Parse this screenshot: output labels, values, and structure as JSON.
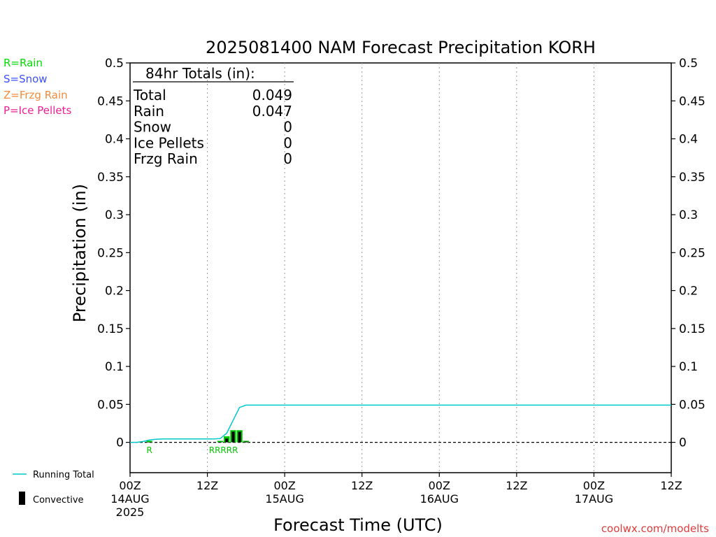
{
  "chart_data": {
    "type": "bar",
    "title": "2025081400 NAM Forecast Precipitation KORH",
    "xlabel": "Forecast Time (UTC)",
    "ylabel": "Precipitation (in)",
    "ylim": [
      -0.04,
      0.5
    ],
    "xlim_hours": [
      0,
      84
    ],
    "grid": "vertical dotted",
    "y_ticks": [
      "0",
      "0.05",
      "0.1",
      "0.15",
      "0.2",
      "0.25",
      "0.3",
      "0.35",
      "0.4",
      "0.45",
      "0.5"
    ],
    "x_ticks": [
      {
        "hour": 0,
        "label": "00Z",
        "sub": [
          "14AUG",
          "2025"
        ]
      },
      {
        "hour": 12,
        "label": "12Z",
        "sub": []
      },
      {
        "hour": 24,
        "label": "00Z",
        "sub": [
          "15AUG"
        ]
      },
      {
        "hour": 36,
        "label": "12Z",
        "sub": []
      },
      {
        "hour": 48,
        "label": "00Z",
        "sub": [
          "16AUG"
        ]
      },
      {
        "hour": 60,
        "label": "12Z",
        "sub": []
      },
      {
        "hour": 72,
        "label": "00Z",
        "sub": [
          "17AUG"
        ]
      },
      {
        "hour": 84,
        "label": "12Z",
        "sub": []
      }
    ],
    "series": [
      {
        "name": "Running Total",
        "type": "line",
        "color": "#00c8c8",
        "points": [
          [
            0,
            0
          ],
          [
            1,
            0
          ],
          [
            2,
            0.001
          ],
          [
            3,
            0.003
          ],
          [
            4,
            0.004
          ],
          [
            5,
            0.0045
          ],
          [
            8,
            0.0045
          ],
          [
            12,
            0.0045
          ],
          [
            13,
            0.0045
          ],
          [
            14,
            0.005
          ],
          [
            15,
            0.012
          ],
          [
            16,
            0.029
          ],
          [
            17,
            0.046
          ],
          [
            18,
            0.049
          ],
          [
            84,
            0.049
          ]
        ]
      },
      {
        "name": "precip_bars",
        "type": "bar",
        "color": "#00c800",
        "bars": [
          {
            "hour": 3,
            "total": 0.002,
            "convective": 0.0005
          },
          {
            "hour": 14,
            "total": 0.002,
            "convective": 0.0005
          },
          {
            "hour": 15,
            "total": 0.008,
            "convective": 0.005
          },
          {
            "hour": 16,
            "total": 0.016,
            "convective": 0.014
          },
          {
            "hour": 17,
            "total": 0.016,
            "convective": 0.014
          },
          {
            "hour": 18,
            "total": 0.002,
            "convective": 0.001
          }
        ]
      }
    ],
    "ptype_markers": [
      {
        "hour": 3,
        "text": "R"
      },
      {
        "hour": 14.5,
        "text": "RRRRR"
      }
    ],
    "totals_box": {
      "header": "84hr Totals (in):",
      "rows": [
        {
          "label": "Total",
          "value": "0.049"
        },
        {
          "label": "Rain",
          "value": "0.047"
        },
        {
          "label": "Snow",
          "value": "0"
        },
        {
          "label": "Ice Pellets",
          "value": "0"
        },
        {
          "label": "Frzg Rain",
          "value": "0"
        }
      ]
    },
    "ptype_legend": [
      {
        "text": "R=Rain",
        "color": "#00dd00"
      },
      {
        "text": "S=Snow",
        "color": "#3c50ff"
      },
      {
        "text": "Z=Frzg Rain",
        "color": "#f08c3c"
      },
      {
        "text": "P=Ice Pellets",
        "color": "#f01e96"
      }
    ],
    "legend": {
      "running_total": "Running Total",
      "convective": "Convective"
    },
    "credit": "coolwx.com/modelts",
    "credit_color": "#e03c3c"
  }
}
